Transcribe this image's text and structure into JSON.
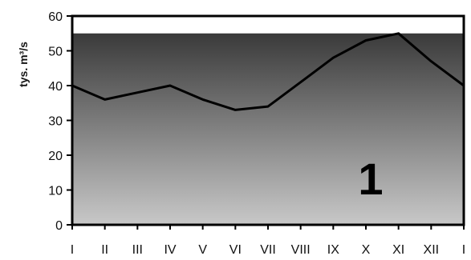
{
  "chart_data": {
    "type": "area",
    "ylabel": "tys. m³/s",
    "ylim": [
      0,
      60
    ],
    "yticks": [
      0,
      10,
      20,
      30,
      40,
      50,
      60
    ],
    "categories": [
      "I",
      "II",
      "III",
      "IV",
      "V",
      "VI",
      "VII",
      "VIII",
      "IX",
      "X",
      "XI",
      "XII",
      "I"
    ],
    "band_top": 55,
    "series": [
      {
        "values": [
          40,
          36,
          38,
          40,
          36,
          33,
          34,
          41,
          48,
          53,
          55,
          47,
          40
        ]
      }
    ],
    "annotation": "1",
    "grid": false,
    "colors": {
      "fill_top": "#3a3a3a",
      "fill_bottom": "#c8c8c8",
      "line": "#000000",
      "frame": "#000000"
    }
  }
}
